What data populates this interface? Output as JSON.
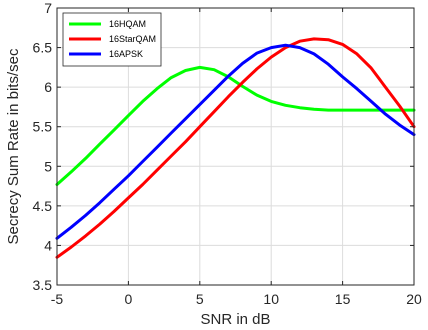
{
  "chart_data": {
    "type": "line",
    "title": "",
    "xlabel": "SNR in dB",
    "ylabel": "Secrecy Sum Rate in bits/sec",
    "xlim": [
      -5,
      20
    ],
    "ylim": [
      3.5,
      7
    ],
    "xticks": [
      -5,
      0,
      5,
      10,
      15,
      20
    ],
    "yticks": [
      3.5,
      4,
      4.5,
      5,
      5.5,
      6,
      6.5,
      7
    ],
    "grid": true,
    "legend_position": "top-left",
    "series": [
      {
        "name": "16HQAM",
        "color": "#00ff00",
        "x": [
          -5,
          -4,
          -3,
          -2,
          -1,
          0,
          1,
          2,
          3,
          4,
          5,
          6,
          7,
          8,
          9,
          10,
          11,
          12,
          13,
          14,
          15,
          16,
          17,
          18,
          19,
          20
        ],
        "y": [
          4.77,
          4.93,
          5.1,
          5.28,
          5.46,
          5.64,
          5.82,
          5.98,
          6.12,
          6.21,
          6.25,
          6.22,
          6.13,
          6.01,
          5.9,
          5.82,
          5.77,
          5.74,
          5.72,
          5.71,
          5.71,
          5.71,
          5.71,
          5.71,
          5.71,
          5.71
        ]
      },
      {
        "name": "16StarQAM",
        "color": "#ff0000",
        "x": [
          -5,
          -4,
          -3,
          -2,
          -1,
          0,
          1,
          2,
          3,
          4,
          5,
          6,
          7,
          8,
          9,
          10,
          11,
          12,
          13,
          14,
          15,
          16,
          17,
          18,
          19,
          20
        ],
        "y": [
          3.85,
          3.98,
          4.12,
          4.27,
          4.43,
          4.6,
          4.77,
          4.95,
          5.13,
          5.31,
          5.5,
          5.69,
          5.88,
          6.06,
          6.23,
          6.38,
          6.5,
          6.58,
          6.61,
          6.6,
          6.54,
          6.42,
          6.24,
          6.0,
          5.76,
          5.5
        ]
      },
      {
        "name": "16APSK",
        "color": "#0000ff",
        "x": [
          -5,
          -4,
          -3,
          -2,
          -1,
          0,
          1,
          2,
          3,
          4,
          5,
          6,
          7,
          8,
          9,
          10,
          11,
          12,
          13,
          14,
          15,
          16,
          17,
          18,
          19,
          20
        ],
        "y": [
          4.09,
          4.23,
          4.38,
          4.54,
          4.71,
          4.88,
          5.06,
          5.24,
          5.42,
          5.6,
          5.78,
          5.96,
          6.14,
          6.3,
          6.43,
          6.5,
          6.53,
          6.5,
          6.42,
          6.29,
          6.13,
          5.98,
          5.82,
          5.66,
          5.52,
          5.4
        ]
      }
    ]
  }
}
